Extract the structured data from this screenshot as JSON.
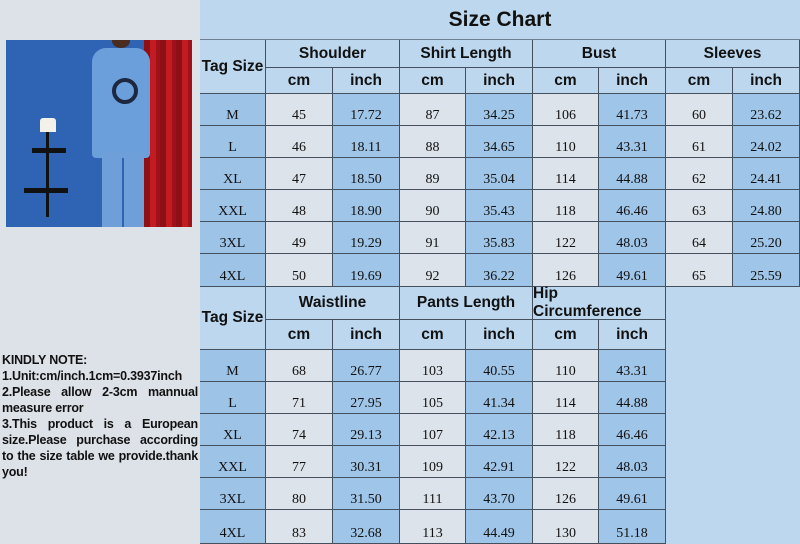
{
  "title": "Size Chart",
  "note": {
    "heading": "KINDLY NOTE:",
    "lines": [
      "1.Unit:cm/inch.1cm=0.3937inch",
      "2.Please allow 2-3cm mannual measure error",
      "3.This product is a European size.Please purchase according to the size table we provide.thank you!"
    ]
  },
  "colors": {
    "header": "#bdd7ee",
    "tag_column": "#9dc3e6",
    "cm_column": "#dde3ea",
    "inch_column": "#9fc5e8"
  },
  "top_table": {
    "tag_header": "Tag Size",
    "groups": [
      "Shoulder",
      "Shirt Length",
      "Bust",
      "Sleeves"
    ],
    "units": [
      "cm",
      "inch",
      "cm",
      "inch",
      "cm",
      "inch",
      "cm",
      "inch"
    ],
    "rows": [
      [
        "M",
        "45",
        "17.72",
        "87",
        "34.25",
        "106",
        "41.73",
        "60",
        "23.62"
      ],
      [
        "L",
        "46",
        "18.11",
        "88",
        "34.65",
        "110",
        "43.31",
        "61",
        "24.02"
      ],
      [
        "XL",
        "47",
        "18.50",
        "89",
        "35.04",
        "114",
        "44.88",
        "62",
        "24.41"
      ],
      [
        "XXL",
        "48",
        "18.90",
        "90",
        "35.43",
        "118",
        "46.46",
        "63",
        "24.80"
      ],
      [
        "3XL",
        "49",
        "19.29",
        "91",
        "35.83",
        "122",
        "48.03",
        "64",
        "25.20"
      ],
      [
        "4XL",
        "50",
        "19.69",
        "92",
        "36.22",
        "126",
        "49.61",
        "65",
        "25.59"
      ]
    ]
  },
  "bottom_table": {
    "tag_header": "Tag Size",
    "groups": [
      "Waistline",
      "Pants Length",
      "Hip Circumference"
    ],
    "units": [
      "cm",
      "inch",
      "cm",
      "inch",
      "cm",
      "inch"
    ],
    "rows": [
      [
        "M",
        "68",
        "26.77",
        "103",
        "40.55",
        "110",
        "43.31"
      ],
      [
        "L",
        "71",
        "27.95",
        "105",
        "41.34",
        "114",
        "44.88"
      ],
      [
        "XL",
        "74",
        "29.13",
        "107",
        "42.13",
        "118",
        "46.46"
      ],
      [
        "XXL",
        "77",
        "30.31",
        "109",
        "42.91",
        "122",
        "48.03"
      ],
      [
        "3XL",
        "80",
        "31.50",
        "111",
        "43.70",
        "126",
        "49.61"
      ],
      [
        "4XL",
        "83",
        "32.68",
        "113",
        "44.49",
        "130",
        "51.18"
      ]
    ]
  }
}
